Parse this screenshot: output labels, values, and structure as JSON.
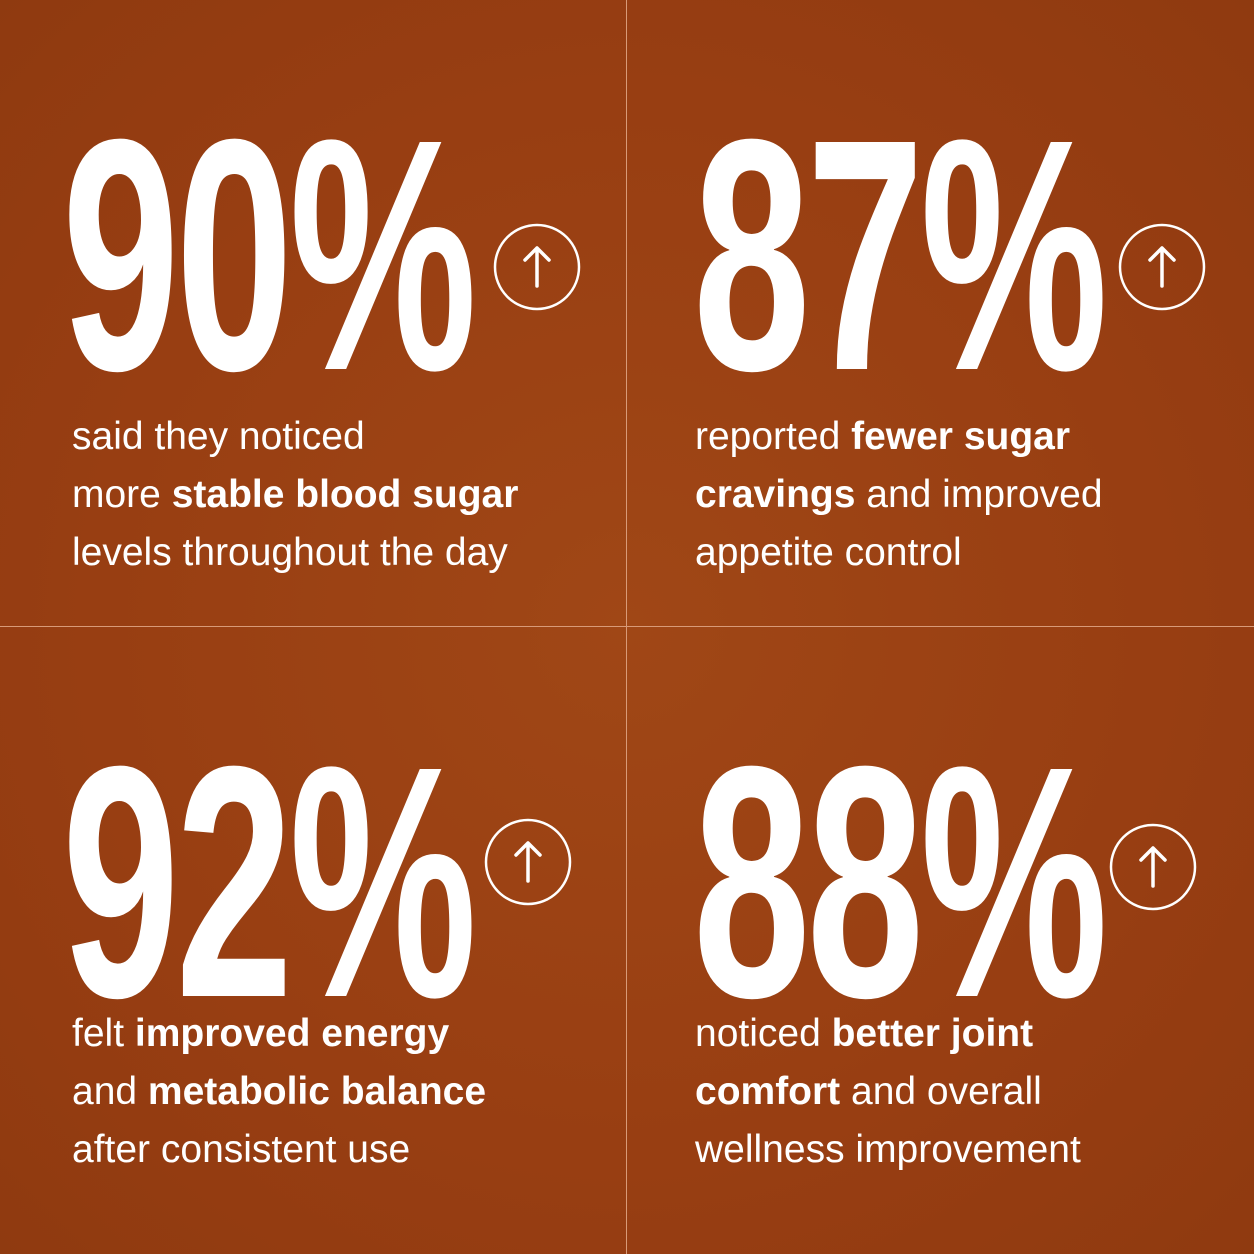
{
  "cards": [
    {
      "stat": "90%",
      "lines": [
        [
          {
            "text": "said they noticed",
            "bold": false
          }
        ],
        [
          {
            "text": "more ",
            "bold": false
          },
          {
            "text": "stable blood sugar",
            "bold": true
          }
        ],
        [
          {
            "text": "levels throughout the day",
            "bold": false
          }
        ]
      ]
    },
    {
      "stat": "87%",
      "lines": [
        [
          {
            "text": "reported ",
            "bold": false
          },
          {
            "text": "fewer sugar",
            "bold": true
          }
        ],
        [
          {
            "text": "cravings",
            "bold": true
          },
          {
            "text": " and improved",
            "bold": false
          }
        ],
        [
          {
            "text": "appetite control",
            "bold": false
          }
        ]
      ]
    },
    {
      "stat": "92%",
      "lines": [
        [
          {
            "text": "felt ",
            "bold": false
          },
          {
            "text": "improved energy",
            "bold": true
          }
        ],
        [
          {
            "text": "and ",
            "bold": false
          },
          {
            "text": "metabolic balance",
            "bold": true
          }
        ],
        [
          {
            "text": "after consistent use",
            "bold": false
          }
        ]
      ]
    },
    {
      "stat": "88%",
      "lines": [
        [
          {
            "text": "noticed ",
            "bold": false
          },
          {
            "text": "better joint",
            "bold": true
          }
        ],
        [
          {
            "text": "comfort",
            "bold": true
          },
          {
            "text": " and overall",
            "bold": false
          }
        ],
        [
          {
            "text": "wellness improvement",
            "bold": false
          }
        ]
      ]
    }
  ]
}
